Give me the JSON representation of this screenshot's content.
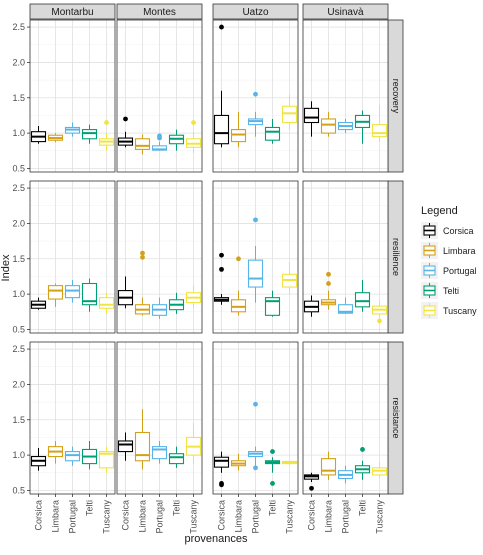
{
  "chart_data": {
    "type": "boxplot",
    "xlabel": "provenances",
    "ylabel": "Index",
    "provenances": [
      "Corsica",
      "Limbara",
      "Portugal",
      "Telti",
      "Tuscany"
    ],
    "sites": [
      "Montarbu",
      "Montes",
      "Uatzo",
      "Usinavà"
    ],
    "indices": [
      "recovery",
      "resilience",
      "resistance"
    ],
    "ylim": [
      0.45,
      2.6
    ],
    "yticks": [
      0.5,
      1.0,
      1.5,
      2.0,
      2.5
    ],
    "ytick_labels": [
      "0.5",
      "1.0",
      "1.5",
      "2.0",
      "2.5"
    ],
    "grid": true,
    "legend": {
      "title": "Legend",
      "position": "right",
      "entries": [
        "Corsica",
        "Limbara",
        "Portugal",
        "Telti",
        "Tuscany"
      ]
    },
    "colors": {
      "Corsica": "#000000",
      "Limbara": "#D4A017",
      "Portugal": "#56B4E9",
      "Telti": "#009E73",
      "Tuscany": "#F0E442"
    },
    "boxes": {
      "recovery": {
        "Montarbu": [
          [
            0.85,
            0.88,
            0.95,
            1.02,
            1.1,
            []
          ],
          [
            0.87,
            0.9,
            0.93,
            0.97,
            1.0,
            []
          ],
          [
            0.95,
            1.0,
            1.05,
            1.08,
            1.15,
            []
          ],
          [
            0.85,
            0.92,
            1.0,
            1.05,
            1.12,
            []
          ],
          [
            0.75,
            0.83,
            0.88,
            0.92,
            1.0,
            [
              1.15
            ]
          ]
        ],
        "Montes": [
          [
            0.8,
            0.83,
            0.88,
            0.93,
            1.02,
            [
              1.2
            ]
          ],
          [
            0.7,
            0.77,
            0.82,
            0.92,
            0.98,
            []
          ],
          [
            0.75,
            0.76,
            0.77,
            0.82,
            0.88,
            [
              0.93,
              0.96
            ]
          ],
          [
            0.75,
            0.85,
            0.92,
            0.97,
            1.05,
            []
          ],
          [
            0.72,
            0.8,
            0.85,
            0.92,
            1.02,
            [
              1.15
            ]
          ]
        ],
        "Uatzo": [
          [
            0.8,
            0.85,
            1.0,
            1.25,
            1.6,
            [
              2.5
            ]
          ],
          [
            0.8,
            0.88,
            0.98,
            1.05,
            1.3,
            []
          ],
          [
            0.95,
            1.12,
            1.17,
            1.2,
            1.3,
            [
              1.55
            ]
          ],
          [
            0.85,
            0.9,
            1.02,
            1.08,
            1.2,
            []
          ],
          [
            1.05,
            1.15,
            1.28,
            1.38,
            1.55,
            []
          ]
        ],
        "Usinavà": [
          [
            0.95,
            1.15,
            1.22,
            1.35,
            1.45,
            []
          ],
          [
            0.95,
            1.0,
            1.12,
            1.2,
            1.3,
            []
          ],
          [
            1.0,
            1.05,
            1.1,
            1.15,
            1.2,
            []
          ],
          [
            0.85,
            1.08,
            1.16,
            1.25,
            1.32,
            []
          ],
          [
            0.88,
            0.95,
            1.0,
            1.12,
            1.4,
            []
          ]
        ]
      },
      "resilience": {
        "Montarbu": [
          [
            0.78,
            0.8,
            0.85,
            0.9,
            0.95,
            []
          ],
          [
            0.82,
            0.93,
            1.05,
            1.12,
            1.15,
            []
          ],
          [
            0.88,
            0.95,
            1.05,
            1.12,
            1.2,
            []
          ],
          [
            0.75,
            0.85,
            0.9,
            1.15,
            1.22,
            []
          ],
          [
            0.72,
            0.8,
            0.85,
            0.95,
            1.02,
            []
          ]
        ],
        "Montes": [
          [
            0.8,
            0.85,
            0.95,
            1.05,
            1.25,
            []
          ],
          [
            0.7,
            0.72,
            0.78,
            0.85,
            0.95,
            [
              1.52,
              1.58
            ]
          ],
          [
            0.65,
            0.7,
            0.78,
            0.85,
            0.95,
            []
          ],
          [
            0.72,
            0.78,
            0.85,
            0.92,
            1.02,
            []
          ],
          [
            0.8,
            0.88,
            0.95,
            1.02,
            1.12,
            []
          ]
        ],
        "Uatzo": [
          [
            0.85,
            0.9,
            0.92,
            0.95,
            1.0,
            [
              1.35,
              1.55
            ]
          ],
          [
            0.7,
            0.75,
            0.82,
            0.92,
            1.05,
            [
              1.5
            ]
          ],
          [
            0.88,
            1.1,
            1.22,
            1.48,
            1.68,
            [
              2.05
            ]
          ],
          [
            0.68,
            0.7,
            0.9,
            0.95,
            1.05,
            []
          ],
          [
            1.0,
            1.1,
            1.2,
            1.28,
            1.45,
            []
          ]
        ],
        "Usinavà": [
          [
            0.68,
            0.75,
            0.82,
            0.9,
            0.98,
            []
          ],
          [
            0.78,
            0.85,
            0.88,
            0.92,
            1.05,
            [
              1.15,
              1.28
            ]
          ],
          [
            0.72,
            0.73,
            0.75,
            0.85,
            0.95,
            []
          ],
          [
            0.75,
            0.82,
            0.9,
            1.02,
            1.2,
            []
          ],
          [
            0.65,
            0.72,
            0.78,
            0.83,
            0.9,
            [
              0.62
            ]
          ]
        ]
      },
      "resistance": {
        "Montarbu": [
          [
            0.78,
            0.85,
            0.92,
            0.98,
            1.1,
            []
          ],
          [
            0.88,
            0.98,
            1.05,
            1.12,
            1.2,
            []
          ],
          [
            0.85,
            0.92,
            1.0,
            1.05,
            1.12,
            []
          ],
          [
            0.8,
            0.88,
            0.98,
            1.08,
            1.2,
            []
          ],
          [
            0.75,
            0.82,
            1.02,
            1.05,
            1.12,
            []
          ]
        ],
        "Montes": [
          [
            0.92,
            1.05,
            1.15,
            1.2,
            1.32,
            []
          ],
          [
            0.8,
            0.92,
            1.0,
            1.32,
            1.65,
            []
          ],
          [
            0.88,
            0.95,
            1.08,
            1.12,
            1.2,
            []
          ],
          [
            0.82,
            0.88,
            0.97,
            1.02,
            1.12,
            []
          ],
          [
            0.88,
            1.0,
            1.12,
            1.25,
            1.45,
            []
          ]
        ],
        "Uatzo": [
          [
            0.75,
            0.83,
            0.92,
            0.97,
            1.05,
            [
              0.6,
              0.58
            ]
          ],
          [
            0.78,
            0.85,
            0.88,
            0.92,
            1.02,
            []
          ],
          [
            0.85,
            0.98,
            1.02,
            1.05,
            1.12,
            [
              1.72,
              0.82
            ]
          ],
          [
            0.75,
            0.88,
            0.9,
            0.92,
            0.97,
            [
              0.6,
              1.05
            ]
          ],
          [
            0.86,
            0.88,
            0.9,
            0.91,
            0.92,
            []
          ]
        ],
        "Usinavà": [
          [
            0.62,
            0.66,
            0.7,
            0.72,
            0.75,
            [
              0.53
            ]
          ],
          [
            0.65,
            0.72,
            0.78,
            0.95,
            1.05,
            []
          ],
          [
            0.6,
            0.67,
            0.72,
            0.78,
            0.85,
            []
          ],
          [
            0.65,
            0.75,
            0.8,
            0.85,
            0.92,
            [
              1.08
            ]
          ],
          [
            0.68,
            0.72,
            0.78,
            0.82,
            0.9,
            []
          ]
        ]
      }
    }
  }
}
